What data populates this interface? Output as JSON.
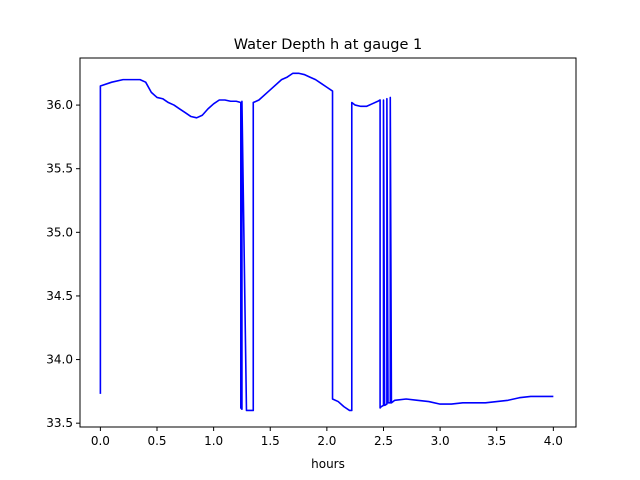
{
  "chart_data": {
    "type": "line",
    "title": "Water Depth h at gauge 1",
    "xlabel": "hours",
    "ylabel": "",
    "xlim": [
      -0.18,
      4.2
    ],
    "ylim": [
      33.47,
      36.37
    ],
    "xticks": [
      0.0,
      0.5,
      1.0,
      1.5,
      2.0,
      2.5,
      3.0,
      3.5,
      4.0
    ],
    "xtick_labels": [
      "0.0",
      "0.5",
      "1.0",
      "1.5",
      "2.0",
      "2.5",
      "3.0",
      "3.5",
      "4.0"
    ],
    "yticks": [
      33.5,
      34.0,
      34.5,
      35.0,
      35.5,
      36.0
    ],
    "ytick_labels": [
      "33.5",
      "34.0",
      "34.5",
      "35.0",
      "35.5",
      "36.0"
    ],
    "grid": false,
    "series": [
      {
        "color": "#0000ff",
        "x": [
          0.0,
          0.0,
          0.1,
          0.2,
          0.3,
          0.35,
          0.4,
          0.45,
          0.5,
          0.55,
          0.6,
          0.65,
          0.7,
          0.75,
          0.8,
          0.85,
          0.9,
          0.95,
          1.0,
          1.05,
          1.1,
          1.15,
          1.2,
          1.24,
          1.24,
          1.25,
          1.25,
          1.29,
          1.33,
          1.35,
          1.35,
          1.4,
          1.5,
          1.6,
          1.65,
          1.7,
          1.75,
          1.8,
          1.85,
          1.9,
          1.95,
          2.0,
          2.05,
          2.05,
          2.1,
          2.15,
          2.2,
          2.22,
          2.22,
          2.25,
          2.3,
          2.35,
          2.4,
          2.45,
          2.47,
          2.47,
          2.48,
          2.5,
          2.5,
          2.51,
          2.53,
          2.53,
          2.54,
          2.56,
          2.56,
          2.57,
          2.6,
          2.7,
          2.8,
          2.9,
          3.0,
          3.05,
          3.1,
          3.2,
          3.3,
          3.4,
          3.5,
          3.6,
          3.7,
          3.8,
          3.9,
          4.0
        ],
        "y": [
          33.73,
          36.15,
          36.18,
          36.2,
          36.2,
          36.2,
          36.18,
          36.1,
          36.06,
          36.05,
          36.02,
          36.0,
          35.97,
          35.94,
          35.91,
          35.9,
          35.92,
          35.97,
          36.01,
          36.04,
          36.04,
          36.03,
          36.03,
          36.02,
          33.62,
          33.61,
          36.03,
          33.6,
          33.6,
          33.6,
          36.02,
          36.04,
          36.12,
          36.2,
          36.22,
          36.25,
          36.25,
          36.24,
          36.22,
          36.2,
          36.17,
          36.14,
          36.11,
          33.69,
          33.67,
          33.63,
          33.6,
          33.6,
          36.02,
          36.0,
          35.99,
          35.99,
          36.01,
          36.03,
          36.04,
          33.62,
          33.63,
          33.64,
          36.04,
          33.64,
          33.65,
          36.05,
          33.66,
          33.66,
          36.06,
          33.66,
          33.68,
          33.69,
          33.68,
          33.67,
          33.65,
          33.65,
          33.65,
          33.66,
          33.66,
          33.66,
          33.67,
          33.68,
          33.7,
          33.71,
          33.71,
          33.71
        ]
      }
    ]
  }
}
